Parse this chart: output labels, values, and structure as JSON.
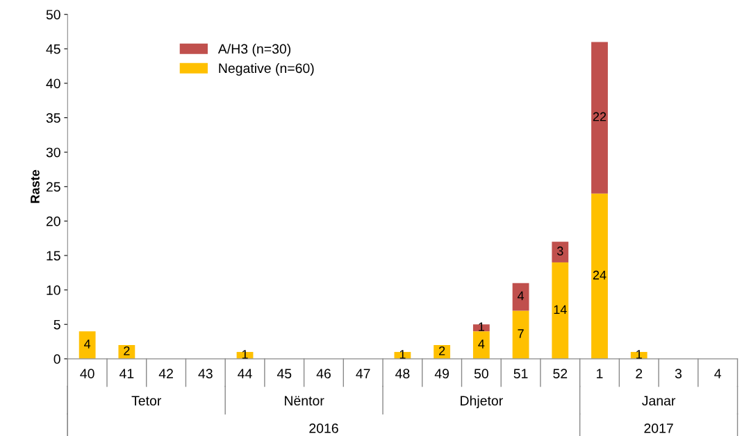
{
  "chart_data": {
    "type": "bar",
    "stacked": true,
    "ylabel": "Raste",
    "categories": [
      "40",
      "41",
      "42",
      "43",
      "44",
      "45",
      "46",
      "47",
      "48",
      "49",
      "50",
      "51",
      "52",
      "1",
      "2",
      "3",
      "4"
    ],
    "series": [
      {
        "name": "Negative (n=60)",
        "color": "#ffc000",
        "values": [
          4,
          2,
          0,
          0,
          1,
          0,
          0,
          0,
          1,
          2,
          4,
          7,
          14,
          24,
          1,
          0,
          0
        ],
        "value_labels": [
          "4",
          "2",
          null,
          null,
          "1",
          null,
          null,
          null,
          "1",
          "2",
          "4",
          "7",
          "14",
          "24",
          "1",
          null,
          null
        ]
      },
      {
        "name": "A/H3 (n=30)",
        "color": "#c0504d",
        "values": [
          0,
          0,
          0,
          0,
          0,
          0,
          0,
          0,
          0,
          0,
          1,
          4,
          3,
          22,
          0,
          0,
          0
        ],
        "value_labels": [
          null,
          null,
          null,
          null,
          null,
          null,
          null,
          null,
          null,
          null,
          "1",
          "4",
          "3",
          "22",
          null,
          null,
          null
        ]
      }
    ],
    "ylim": [
      0,
      50
    ],
    "yticks": [
      0,
      5,
      10,
      15,
      20,
      25,
      30,
      35,
      40,
      45,
      50
    ],
    "grid": false,
    "legend": "top left",
    "annotations": [
      "Tetor",
      "Nëntor",
      "Dhjetor",
      "Janar",
      "2016",
      "2017"
    ]
  }
}
